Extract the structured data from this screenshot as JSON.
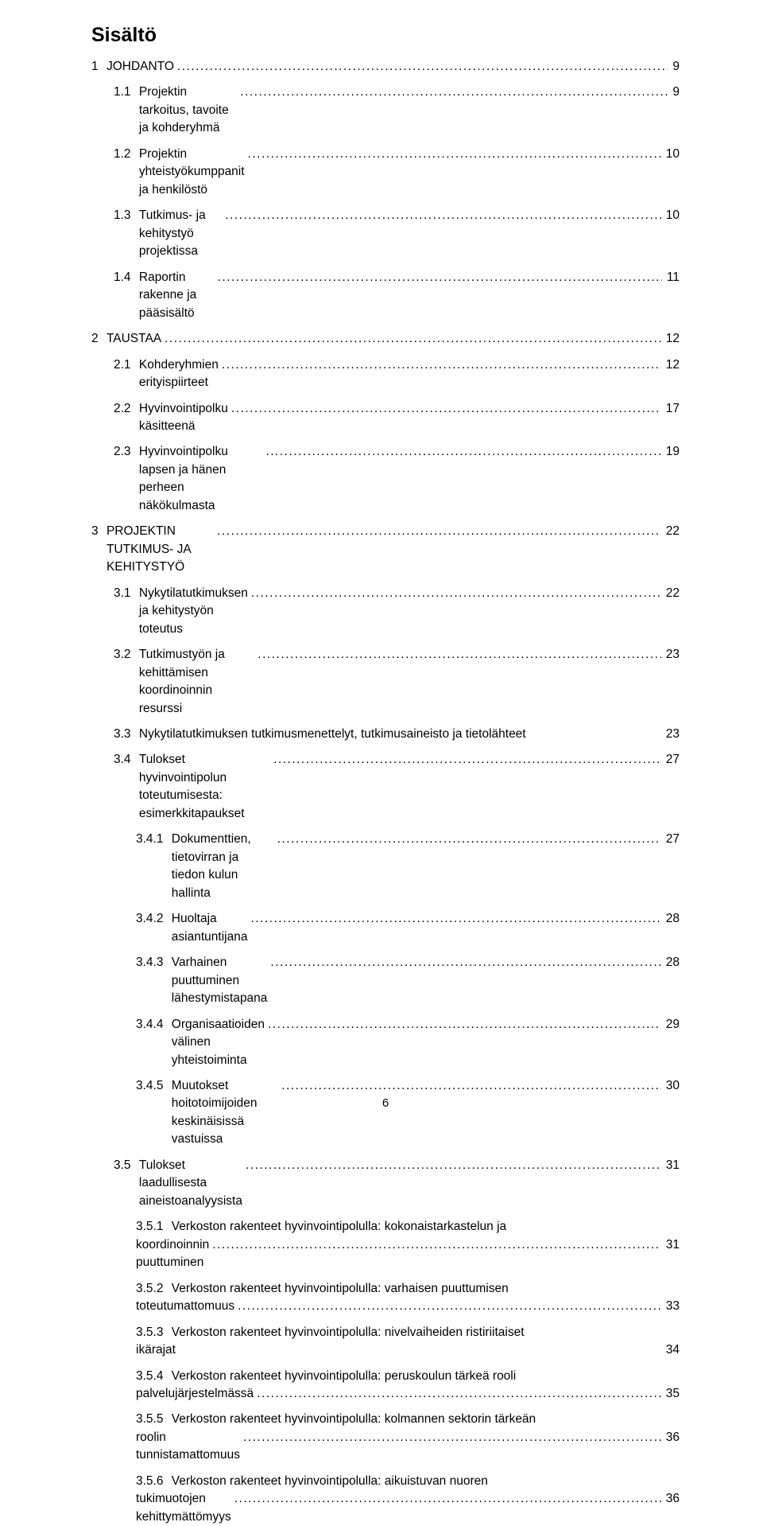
{
  "title": "Sisältö",
  "page_number": "6",
  "entries": [
    {
      "num": "1",
      "label": "JOHDANTO",
      "page": "9",
      "indent": 0
    },
    {
      "num": "1.1",
      "label": "Projektin tarkoitus, tavoite ja kohderyhmä",
      "page": "9",
      "indent": 1
    },
    {
      "num": "1.2",
      "label": "Projektin yhteistyökumppanit ja henkilöstö",
      "page": "10",
      "indent": 1
    },
    {
      "num": "1.3",
      "label": "Tutkimus- ja kehitystyö projektissa",
      "page": "10",
      "indent": 1
    },
    {
      "num": "1.4",
      "label": "Raportin rakenne ja pääsisältö",
      "page": "11",
      "indent": 1
    },
    {
      "num": "2",
      "label": "TAUSTAA",
      "page": "12",
      "indent": 0
    },
    {
      "num": "2.1",
      "label": "Kohderyhmien erityispiirteet",
      "page": "12",
      "indent": 1
    },
    {
      "num": "2.2",
      "label": "Hyvinvointipolku käsitteenä",
      "page": "17",
      "indent": 1
    },
    {
      "num": "2.3",
      "label": "Hyvinvointipolku lapsen ja hänen perheen näkökulmasta",
      "page": "19",
      "indent": 1
    },
    {
      "num": "3",
      "label": "PROJEKTIN TUTKIMUS- JA KEHITYSTYÖ",
      "page": "22",
      "indent": 0
    },
    {
      "num": "3.1",
      "label": "Nykytilatutkimuksen ja kehitystyön toteutus",
      "page": "22",
      "indent": 1
    },
    {
      "num": "3.2",
      "label": "Tutkimustyön ja kehittämisen koordinoinnin resurssi",
      "page": "23",
      "indent": 1
    },
    {
      "num": "3.3",
      "label": "Nykytilatutkimuksen tutkimusmenettelyt, tutkimusaineisto ja tietolähteet",
      "page": "23",
      "indent": 1,
      "no_leader": true
    },
    {
      "num": "3.4",
      "label": "Tulokset hyvinvointipolun toteutumisesta: esimerkkitapaukset",
      "page": "27",
      "indent": 1
    },
    {
      "num": "3.4.1",
      "label": "Dokumenttien, tietovirran ja tiedon kulun hallinta",
      "page": "27",
      "indent": 2
    },
    {
      "num": "3.4.2",
      "label": "Huoltaja asiantuntijana",
      "page": "28",
      "indent": 2
    },
    {
      "num": "3.4.3",
      "label": "Varhainen puuttuminen lähestymistapana",
      "page": "28",
      "indent": 2
    },
    {
      "num": "3.4.4",
      "label": "Organisaatioiden välinen yhteistoiminta",
      "page": "29",
      "indent": 2
    },
    {
      "num": "3.4.5",
      "label": "Muutokset hoitotoimijoiden keskinäisissä vastuissa",
      "page": "30",
      "indent": 2
    },
    {
      "num": "3.5",
      "label": "Tulokset laadullisesta aineistoanalyysista",
      "page": "31",
      "indent": 1
    },
    {
      "num": "3.5.1",
      "label_line1": "Verkoston rakenteet hyvinvointipolulla: kokonaistarkastelun ja",
      "label_line2": "koordinoinnin puuttuminen",
      "page": "31",
      "indent": 2,
      "multiline": true
    },
    {
      "num": "3.5.2",
      "label_line1": "Verkoston rakenteet hyvinvointipolulla: varhaisen puuttumisen",
      "label_line2": "toteutumattomuus",
      "page": "33",
      "indent": 2,
      "multiline": true
    },
    {
      "num": "3.5.3",
      "label_line1": "Verkoston rakenteet hyvinvointipolulla: nivelvaiheiden ristiriitaiset",
      "label_line2": "ikärajat",
      "page": "34",
      "indent": 2,
      "multiline": true,
      "no_leader": true
    },
    {
      "num": "3.5.4",
      "label_line1": "Verkoston rakenteet hyvinvointipolulla: peruskoulun tärkeä rooli",
      "label_line2": "palvelujärjestelmässä",
      "page": "35",
      "indent": 2,
      "multiline": true
    },
    {
      "num": "3.5.5",
      "label_line1": "Verkoston rakenteet hyvinvointipolulla: kolmannen sektorin tärkeän",
      "label_line2": "roolin tunnistamattomuus",
      "page": "36",
      "indent": 2,
      "multiline": true
    },
    {
      "num": "3.5.6",
      "label_line1": "Verkoston rakenteet hyvinvointipolulla: aikuistuvan nuoren",
      "label_line2": "tukimuotojen kehittymättömyys",
      "page": "36",
      "indent": 2,
      "multiline": true
    }
  ]
}
